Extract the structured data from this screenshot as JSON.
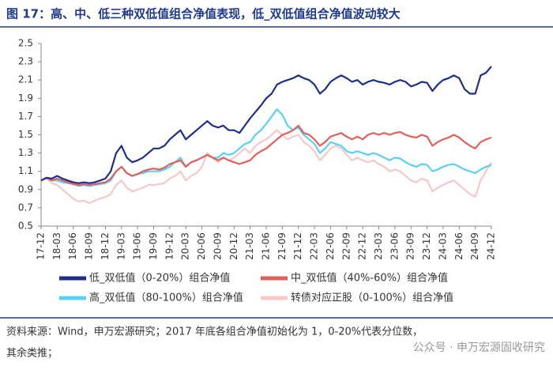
{
  "chart_data": {
    "type": "line",
    "title": "图 17：高、中、低三种双低值组合净值表现，低_双低值组合净值波动较大",
    "notes": [
      "资料来源：Wind，申万宏源研究；2017 年底各组合净值初始化为 1，0-20%代表分位数，",
      "其余类推；"
    ],
    "watermark": "公众号 · 申万宏源固收研究",
    "categories": [
      "17-12",
      null,
      null,
      "18-03",
      null,
      null,
      "18-06",
      null,
      null,
      "18-09",
      null,
      null,
      "18-12",
      null,
      null,
      "19-03",
      null,
      null,
      "19-06",
      null,
      null,
      "19-09",
      null,
      null,
      "19-12",
      null,
      null,
      "20-03",
      null,
      null,
      "20-06",
      null,
      null,
      "20-09",
      null,
      null,
      "20-12",
      null,
      null,
      "21-03",
      null,
      null,
      "21-06",
      null,
      null,
      "21-09",
      null,
      null,
      "21-12",
      null,
      null,
      "22-03",
      null,
      null,
      "22-06",
      null,
      null,
      "22-09",
      null,
      null,
      "22-12",
      null,
      null,
      "23-03",
      null,
      null,
      "23-06",
      null,
      null,
      "23-09",
      null,
      null,
      "23-12",
      null,
      null,
      "24-03",
      null,
      null,
      "24-06",
      null,
      null,
      "24-09",
      null,
      null,
      "24-12"
    ],
    "ylim": [
      0.5,
      2.5
    ],
    "yticks": [
      0.5,
      0.7,
      0.9,
      1.1,
      1.3,
      1.5,
      1.7,
      1.9,
      2.1,
      2.3,
      2.5
    ],
    "series": [
      {
        "name": "低_双低值（0-20%）组合净值",
        "color": "#1c2f8c",
        "values": [
          1.0,
          1.03,
          1.02,
          1.05,
          1.02,
          1.0,
          0.98,
          0.97,
          0.98,
          0.97,
          0.98,
          1.0,
          1.02,
          1.1,
          1.3,
          1.38,
          1.25,
          1.2,
          1.22,
          1.25,
          1.3,
          1.35,
          1.35,
          1.38,
          1.45,
          1.5,
          1.55,
          1.45,
          1.5,
          1.55,
          1.6,
          1.65,
          1.6,
          1.58,
          1.6,
          1.55,
          1.55,
          1.52,
          1.6,
          1.68,
          1.75,
          1.82,
          1.9,
          1.95,
          2.05,
          2.08,
          2.1,
          2.12,
          2.15,
          2.12,
          2.1,
          2.05,
          1.95,
          2.0,
          2.08,
          2.12,
          2.15,
          2.12,
          2.08,
          2.1,
          2.05,
          2.08,
          2.1,
          2.08,
          2.07,
          2.05,
          2.08,
          2.1,
          2.08,
          2.03,
          2.05,
          2.08,
          2.07,
          1.98,
          2.05,
          2.1,
          2.12,
          2.15,
          2.12,
          2.0,
          1.95,
          1.95,
          2.15,
          2.18,
          2.25
        ]
      },
      {
        "name": "中_双低值（40%-60%）组合净值",
        "color": "#e0605c",
        "values": [
          1.0,
          1.03,
          1.0,
          1.02,
          1.0,
          0.98,
          0.96,
          0.95,
          0.96,
          0.95,
          0.96,
          0.97,
          0.98,
          1.02,
          1.1,
          1.15,
          1.08,
          1.05,
          1.07,
          1.1,
          1.12,
          1.13,
          1.12,
          1.14,
          1.18,
          1.2,
          1.22,
          1.15,
          1.2,
          1.22,
          1.25,
          1.28,
          1.25,
          1.22,
          1.25,
          1.22,
          1.2,
          1.18,
          1.2,
          1.22,
          1.28,
          1.32,
          1.35,
          1.4,
          1.45,
          1.5,
          1.52,
          1.55,
          1.6,
          1.52,
          1.5,
          1.45,
          1.38,
          1.42,
          1.48,
          1.5,
          1.52,
          1.48,
          1.45,
          1.48,
          1.45,
          1.5,
          1.52,
          1.5,
          1.52,
          1.5,
          1.52,
          1.53,
          1.5,
          1.48,
          1.47,
          1.5,
          1.48,
          1.38,
          1.42,
          1.45,
          1.47,
          1.5,
          1.47,
          1.42,
          1.38,
          1.35,
          1.42,
          1.45,
          1.47
        ]
      },
      {
        "name": "高_双低值（80-100%）组合净值",
        "color": "#5bd0f4",
        "values": [
          1.0,
          1.03,
          1.0,
          1.0,
          0.98,
          0.97,
          0.96,
          0.94,
          0.95,
          0.94,
          0.95,
          0.96,
          0.97,
          1.0,
          1.1,
          1.15,
          1.08,
          1.05,
          1.07,
          1.08,
          1.1,
          1.1,
          1.1,
          1.12,
          1.15,
          1.2,
          1.25,
          1.15,
          1.2,
          1.22,
          1.25,
          1.28,
          1.25,
          1.25,
          1.3,
          1.28,
          1.3,
          1.35,
          1.4,
          1.42,
          1.5,
          1.55,
          1.62,
          1.7,
          1.78,
          1.72,
          1.6,
          1.55,
          1.58,
          1.5,
          1.45,
          1.4,
          1.3,
          1.35,
          1.42,
          1.4,
          1.38,
          1.32,
          1.3,
          1.32,
          1.3,
          1.28,
          1.3,
          1.28,
          1.25,
          1.22,
          1.25,
          1.24,
          1.2,
          1.17,
          1.15,
          1.18,
          1.17,
          1.1,
          1.12,
          1.15,
          1.17,
          1.18,
          1.15,
          1.12,
          1.1,
          1.08,
          1.12,
          1.15,
          1.17
        ]
      },
      {
        "name": "转债对应正股（0-100%）组合净值",
        "color": "#f6c8c8",
        "values": [
          1.0,
          1.02,
          0.97,
          0.95,
          0.9,
          0.85,
          0.8,
          0.77,
          0.78,
          0.75,
          0.78,
          0.8,
          0.82,
          0.85,
          0.95,
          1.0,
          0.92,
          0.88,
          0.9,
          0.92,
          0.95,
          0.95,
          0.96,
          0.97,
          1.02,
          1.05,
          1.1,
          1.0,
          1.05,
          1.08,
          1.15,
          1.3,
          1.25,
          1.2,
          1.25,
          1.22,
          1.25,
          1.3,
          1.35,
          1.3,
          1.38,
          1.42,
          1.45,
          1.5,
          1.55,
          1.5,
          1.45,
          1.48,
          1.5,
          1.42,
          1.38,
          1.32,
          1.22,
          1.28,
          1.35,
          1.38,
          1.35,
          1.28,
          1.22,
          1.25,
          1.22,
          1.2,
          1.22,
          1.18,
          1.15,
          1.1,
          1.12,
          1.1,
          1.05,
          1.0,
          0.98,
          1.02,
          1.0,
          0.88,
          0.92,
          0.95,
          0.98,
          1.0,
          0.95,
          0.9,
          0.85,
          0.82,
          1.0,
          1.1,
          1.2
        ]
      }
    ]
  }
}
